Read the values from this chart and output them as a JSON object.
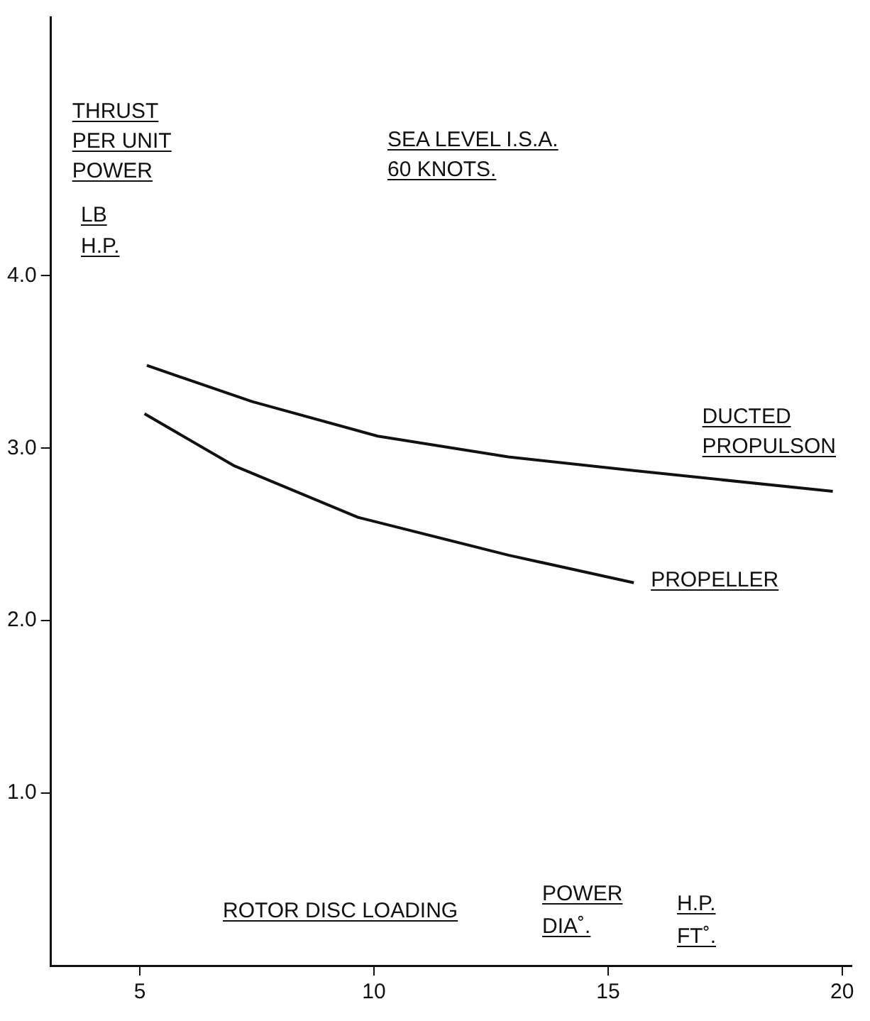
{
  "chart_data": {
    "type": "line",
    "title": "SEA LEVEL I.S.A. 60 KNOTS.",
    "xlabel": "ROTOR DISC LOADING",
    "ylabel": "THRUST PER UNIT POWER",
    "annotations": [
      "LB",
      "H.P.",
      "POWER",
      "DIA˚.",
      "H.P.",
      "FT˚."
    ],
    "series": [
      {
        "name": "DUCTED PROPULSON",
        "color": "#111111",
        "x": [
          5.15,
          7.4,
          10.08,
          12.87,
          15.55,
          19.8
        ],
        "values": [
          3.48,
          3.27,
          3.07,
          2.95,
          2.87,
          2.75
        ]
      },
      {
        "name": "PROPELLER",
        "color": "#111111",
        "x": [
          5.1,
          7.0,
          9.65,
          12.87,
          15.55
        ],
        "values": [
          3.2,
          2.9,
          2.6,
          2.38,
          2.22
        ]
      }
    ],
    "xlim": [
      3.1,
      20.2
    ],
    "ylim": [
      0,
      5.5
    ],
    "xticks": [
      5,
      10,
      15,
      20
    ],
    "yticks": [
      {
        "value": 1,
        "label": "1.0"
      },
      {
        "value": 2,
        "label": "2.0"
      },
      {
        "value": 3,
        "label": "3.0"
      },
      {
        "value": 4,
        "label": "4.0"
      }
    ],
    "grid": false,
    "legend": false,
    "marker": "none",
    "line_style": "solid"
  }
}
